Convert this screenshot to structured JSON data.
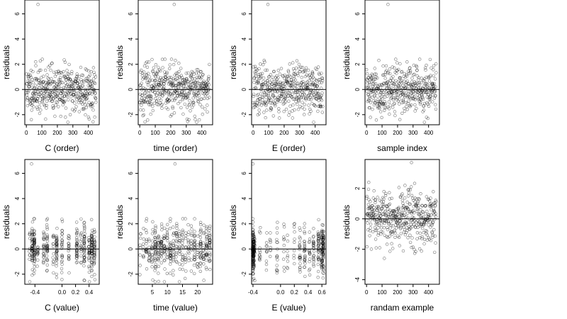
{
  "chart_data": [
    {
      "id": "c-order",
      "type": "scatter",
      "xlabel": "C (order)",
      "ylabel": "residuals",
      "xlim": [
        -10,
        470
      ],
      "ylim": [
        -2.8,
        7.1
      ],
      "xticks": [
        0,
        100,
        200,
        300,
        400
      ],
      "yticks": [
        -2,
        0,
        2,
        4,
        6
      ],
      "x_kind": "index",
      "n_points": 450,
      "outlier": [
        75,
        6.75
      ],
      "seed": 11,
      "zero_line": true,
      "grid": false,
      "marker_color": "#000000"
    },
    {
      "id": "time-order",
      "type": "scatter",
      "xlabel": "time (order)",
      "ylabel": "residuals",
      "xlim": [
        -10,
        470
      ],
      "ylim": [
        -2.8,
        7.1
      ],
      "xticks": [
        0,
        100,
        200,
        300,
        400
      ],
      "yticks": [
        -2,
        0,
        2,
        4,
        6
      ],
      "x_kind": "index",
      "n_points": 450,
      "outlier": [
        222,
        6.75
      ],
      "seed": 23,
      "zero_line": true,
      "grid": false,
      "marker_color": "#000000"
    },
    {
      "id": "e-order",
      "type": "scatter",
      "xlabel": "E (order)",
      "ylabel": "residuals",
      "xlim": [
        -10,
        470
      ],
      "ylim": [
        -2.8,
        7.1
      ],
      "xticks": [
        0,
        100,
        200,
        300,
        400
      ],
      "yticks": [
        -2,
        0,
        2,
        4,
        6
      ],
      "x_kind": "index",
      "n_points": 450,
      "outlier": [
        95,
        6.75
      ],
      "seed": 37,
      "zero_line": true,
      "grid": false,
      "marker_color": "#000000"
    },
    {
      "id": "sample-index",
      "type": "scatter",
      "xlabel": "sample index",
      "ylabel": "residuals",
      "xlim": [
        -10,
        470
      ],
      "ylim": [
        -2.8,
        7.1
      ],
      "xticks": [
        0,
        100,
        200,
        300,
        400
      ],
      "yticks": [
        -2,
        0,
        2,
        4,
        6
      ],
      "x_kind": "index",
      "n_points": 450,
      "outlier": [
        138,
        6.75
      ],
      "seed": 41,
      "zero_line": true,
      "grid": false,
      "marker_color": "#000000"
    },
    {
      "id": "c-value",
      "type": "scatter",
      "xlabel": "C (value)",
      "ylabel": "residuals",
      "xlim": [
        -0.55,
        0.55
      ],
      "ylim": [
        -2.8,
        7.1
      ],
      "xticks": [
        -0.4,
        0.0,
        0.2,
        0.4
      ],
      "xtick_labels": [
        "-0.4",
        "0.0",
        "0.2",
        "0.4"
      ],
      "yticks": [
        -2,
        0,
        2,
        4,
        6
      ],
      "x_kind": "levels",
      "levels": [
        -0.48,
        -0.44,
        -0.41,
        -0.36,
        -0.27,
        -0.22,
        -0.13,
        -0.08,
        0.0,
        0.1,
        0.22,
        0.28,
        0.33,
        0.4,
        0.44,
        0.48
      ],
      "level_weights": [
        1,
        3,
        3,
        1,
        2,
        2,
        1,
        2,
        2,
        1,
        2,
        1,
        2,
        2,
        3,
        3
      ],
      "n_points": 450,
      "outlier": [
        -0.45,
        6.75
      ],
      "seed": 53,
      "zero_line": true,
      "grid": false,
      "marker_color": "#000000"
    },
    {
      "id": "time-value",
      "type": "scatter",
      "xlabel": "time (value)",
      "ylabel": "residuals",
      "xlim": [
        0.3,
        25
      ],
      "ylim": [
        -2.8,
        7.1
      ],
      "xticks": [
        5,
        10,
        15,
        20
      ],
      "yticks": [
        -2,
        0,
        2,
        4,
        6
      ],
      "x_kind": "levels",
      "levels": [
        1,
        2,
        3,
        4,
        5,
        6,
        7,
        8,
        9,
        10,
        11,
        12,
        13,
        14,
        15,
        16,
        17,
        18,
        19,
        20,
        21,
        22,
        23,
        24
      ],
      "level_weights": [
        1,
        1,
        2,
        1,
        2,
        3,
        2,
        2,
        2,
        3,
        3,
        3,
        2,
        2,
        2,
        2,
        2,
        2,
        3,
        2,
        2,
        2,
        3,
        3
      ],
      "n_points": 450,
      "outlier": [
        12.5,
        6.75
      ],
      "seed": 67,
      "zero_line": true,
      "grid": false,
      "marker_color": "#000000"
    },
    {
      "id": "e-value",
      "type": "scatter",
      "xlabel": "E (value)",
      "ylabel": "residuals",
      "xlim": [
        -0.42,
        0.66
      ],
      "ylim": [
        -2.8,
        7.1
      ],
      "xticks": [
        -0.4,
        0.0,
        0.2,
        0.4,
        0.6
      ],
      "xtick_labels": [
        "-0.4",
        "0.0",
        "0.2",
        "0.4",
        "0.6"
      ],
      "yticks": [
        -2,
        0,
        2,
        4,
        6
      ],
      "x_kind": "levels",
      "levels": [
        -0.4,
        -0.39,
        -0.38,
        -0.3,
        -0.2,
        -0.15,
        -0.05,
        0.05,
        0.1,
        0.2,
        0.28,
        0.35,
        0.42,
        0.48,
        0.55,
        0.6,
        0.62
      ],
      "level_weights": [
        9,
        5,
        2,
        1,
        1,
        1,
        1,
        1,
        1,
        1,
        2,
        2,
        2,
        2,
        3,
        3,
        5
      ],
      "n_points": 450,
      "outlier": [
        -0.4,
        6.75
      ],
      "seed": 79,
      "zero_line": true,
      "grid": false,
      "marker_color": "#000000"
    },
    {
      "id": "random-example",
      "type": "scatter",
      "xlabel": "randam example",
      "ylabel": "residuals",
      "xlim": [
        -10,
        470
      ],
      "ylim": [
        -4.3,
        3.9
      ],
      "xticks": [
        0,
        100,
        200,
        300,
        400
      ],
      "yticks": [
        -4,
        -2,
        0,
        2
      ],
      "x_kind": "index",
      "n_points": 450,
      "outlier": [
        290,
        3.7
      ],
      "seed": 97,
      "zero_line": true,
      "grid": false,
      "marker_color": "#000000"
    }
  ]
}
